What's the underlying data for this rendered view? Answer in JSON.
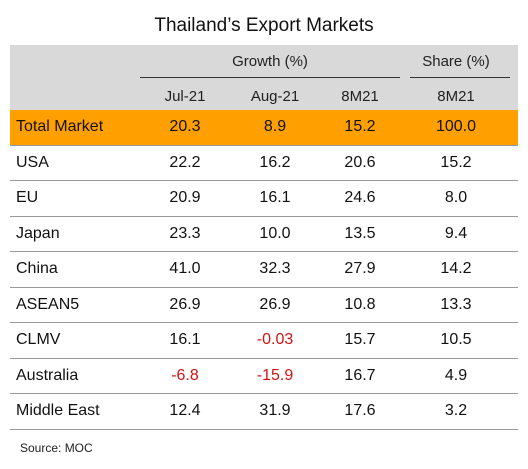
{
  "title": "Thailand’s Export Markets",
  "source": "Source: MOC",
  "header": {
    "growth_label": "Growth (%)",
    "share_label": "Share (%)",
    "columns": [
      "Jul-21",
      "Aug-21",
      "8M21",
      "8M21"
    ]
  },
  "colors": {
    "highlight": "#ffa000",
    "header_bg": "#d9d9d9",
    "negative": "#d01414"
  },
  "chart_data": {
    "type": "table",
    "title": "Thailand’s Export Markets",
    "columns": [
      "Jul-21 Growth (%)",
      "Aug-21 Growth (%)",
      "8M21 Growth (%)",
      "8M21 Share (%)"
    ],
    "rows": [
      {
        "name": "Total Market",
        "values": [
          "20.3",
          "8.9",
          "15.2",
          "100.0"
        ]
      },
      {
        "name": "USA",
        "values": [
          "22.2",
          "16.2",
          "20.6",
          "15.2"
        ]
      },
      {
        "name": "EU",
        "values": [
          "20.9",
          "16.1",
          "24.6",
          "8.0"
        ]
      },
      {
        "name": "Japan",
        "values": [
          "23.3",
          "10.0",
          "13.5",
          "9.4"
        ]
      },
      {
        "name": "China",
        "values": [
          "41.0",
          "32.3",
          "27.9",
          "14.2"
        ]
      },
      {
        "name": "ASEAN5",
        "values": [
          "26.9",
          "26.9",
          "10.8",
          "13.3"
        ]
      },
      {
        "name": "CLMV",
        "values": [
          "16.1",
          "-0.03",
          "15.7",
          "10.5"
        ]
      },
      {
        "name": "Australia",
        "values": [
          "-6.8",
          "-15.9",
          "16.7",
          "4.9"
        ]
      },
      {
        "name": "Middle East",
        "values": [
          "12.4",
          "31.9",
          "17.6",
          "3.2"
        ]
      }
    ]
  }
}
